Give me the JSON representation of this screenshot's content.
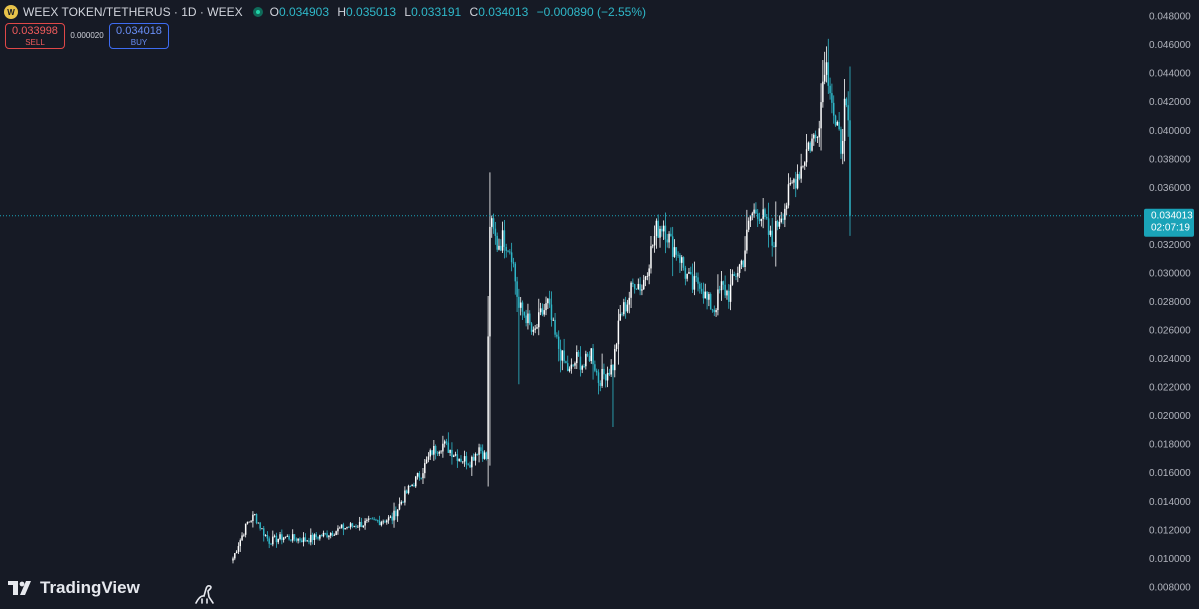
{
  "header": {
    "symbol_title": "WEEX TOKEN/TETHERUS · 1D · WEEX",
    "ohlc": {
      "o_label": "O",
      "o": "0.034903",
      "h_label": "H",
      "h": "0.035013",
      "l_label": "L",
      "l": "0.033191",
      "c_label": "C",
      "c": "0.034013",
      "change": "−0.000890 (−2.55%)"
    }
  },
  "trade_panel": {
    "sell_price": "0.033998",
    "sell_label": "SELL",
    "spread": "0.000020",
    "buy_price": "0.034018",
    "buy_label": "BUY"
  },
  "price_tag": {
    "price": "0.034013",
    "countdown": "02:07:19"
  },
  "branding": {
    "logo_text": "TradingView"
  },
  "colors": {
    "background": "#161a25",
    "up": "#ffffff",
    "down": "#2fb8c9",
    "accent": "#1aa3b8"
  },
  "chart_data": {
    "type": "candlestick",
    "y_ticks": [
      "0.048000",
      "0.046000",
      "0.044000",
      "0.042000",
      "0.040000",
      "0.038000",
      "0.036000",
      "0.034000",
      "0.032000",
      "0.030000",
      "0.028000",
      "0.026000",
      "0.024000",
      "0.022000",
      "0.020000",
      "0.018000",
      "0.016000",
      "0.014000",
      "0.012000",
      "0.010000",
      "0.008000"
    ],
    "ylim": [
      0.0075,
      0.0485
    ],
    "last_price": 0.034013,
    "approx_close_path": [
      [
        0,
        0.01
      ],
      [
        3,
        0.011
      ],
      [
        8,
        0.0125
      ],
      [
        12,
        0.013
      ],
      [
        16,
        0.012
      ],
      [
        20,
        0.0112
      ],
      [
        28,
        0.0115
      ],
      [
        40,
        0.0113
      ],
      [
        52,
        0.0117
      ],
      [
        60,
        0.0121
      ],
      [
        70,
        0.0124
      ],
      [
        80,
        0.0126
      ],
      [
        88,
        0.0128
      ],
      [
        93,
        0.014
      ],
      [
        98,
        0.015
      ],
      [
        104,
        0.016
      ],
      [
        110,
        0.0175
      ],
      [
        116,
        0.018
      ],
      [
        121,
        0.0175
      ],
      [
        126,
        0.017
      ],
      [
        131,
        0.0168
      ],
      [
        136,
        0.0178
      ],
      [
        140,
        0.017
      ],
      [
        142,
        0.0335
      ],
      [
        146,
        0.032
      ],
      [
        150,
        0.0325
      ],
      [
        154,
        0.0315
      ],
      [
        158,
        0.0275
      ],
      [
        162,
        0.027
      ],
      [
        166,
        0.0255
      ],
      [
        170,
        0.027
      ],
      [
        174,
        0.0278
      ],
      [
        178,
        0.0255
      ],
      [
        182,
        0.024
      ],
      [
        186,
        0.023
      ],
      [
        190,
        0.024
      ],
      [
        194,
        0.0235
      ],
      [
        198,
        0.0245
      ],
      [
        202,
        0.0225
      ],
      [
        206,
        0.023
      ],
      [
        210,
        0.0235
      ],
      [
        214,
        0.027
      ],
      [
        218,
        0.028
      ],
      [
        222,
        0.0295
      ],
      [
        226,
        0.029
      ],
      [
        230,
        0.031
      ],
      [
        234,
        0.033
      ],
      [
        238,
        0.0335
      ],
      [
        242,
        0.032
      ],
      [
        246,
        0.0315
      ],
      [
        250,
        0.03
      ],
      [
        254,
        0.029
      ],
      [
        258,
        0.0295
      ],
      [
        262,
        0.028
      ],
      [
        266,
        0.0275
      ],
      [
        270,
        0.029
      ],
      [
        274,
        0.0285
      ],
      [
        278,
        0.03
      ],
      [
        282,
        0.031
      ],
      [
        286,
        0.034
      ],
      [
        290,
        0.0345
      ],
      [
        294,
        0.0335
      ],
      [
        298,
        0.032
      ],
      [
        302,
        0.034
      ],
      [
        306,
        0.035
      ],
      [
        310,
        0.0365
      ],
      [
        314,
        0.0375
      ],
      [
        318,
        0.039
      ],
      [
        322,
        0.0395
      ],
      [
        325,
        0.042
      ],
      [
        327,
        0.045
      ],
      [
        330,
        0.0435
      ],
      [
        333,
        0.04
      ],
      [
        336,
        0.039
      ],
      [
        338,
        0.0415
      ],
      [
        340,
        0.04
      ],
      [
        341,
        0.034
      ]
    ]
  }
}
